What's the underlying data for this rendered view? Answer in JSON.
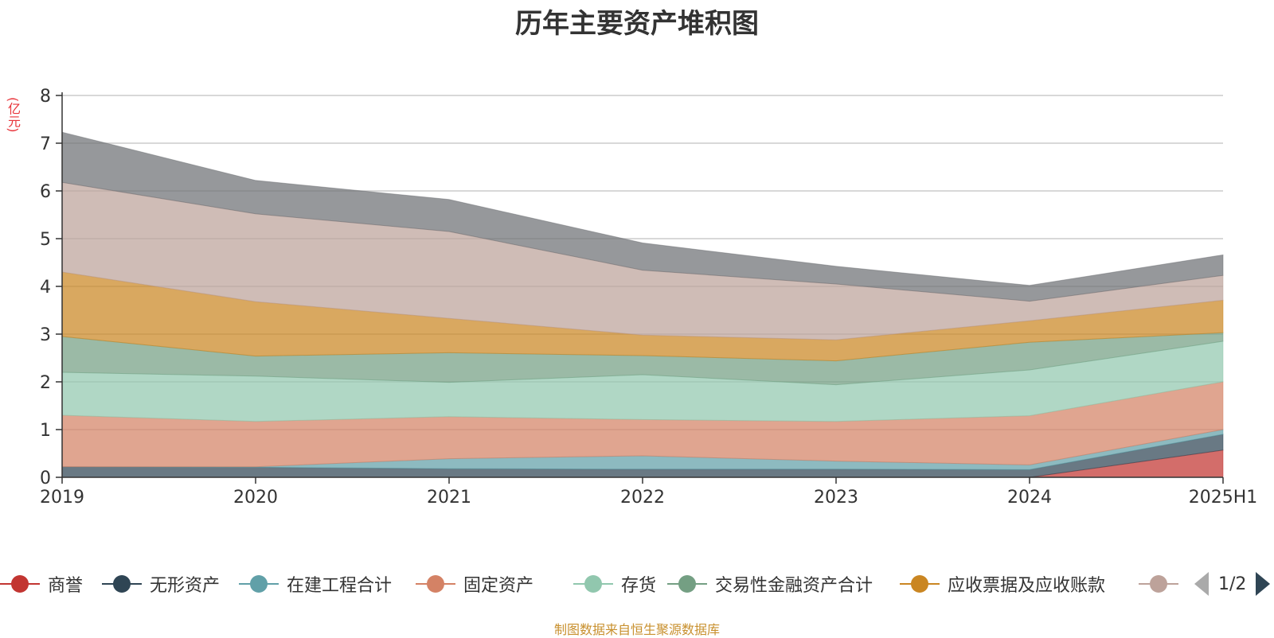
{
  "chart_data": {
    "type": "area",
    "stacked": true,
    "title": "历年主要资产堆积图",
    "unit": "(亿元)",
    "categories": [
      "2019",
      "2020",
      "2021",
      "2022",
      "2023",
      "2024",
      "2025H1"
    ],
    "ylim": [
      0,
      8
    ],
    "yticks": [
      0,
      1,
      2,
      3,
      4,
      5,
      6,
      7,
      8
    ],
    "grid": true,
    "legend_position": "bottom",
    "series": [
      {
        "name": "商誉",
        "color": "#c23531",
        "values": [
          0,
          0,
          0,
          0,
          0,
          0,
          0.57
        ]
      },
      {
        "name": "无形资产",
        "color": "#2f4554",
        "values": [
          0.22,
          0.21,
          0.18,
          0.17,
          0.17,
          0.16,
          0.33
        ]
      },
      {
        "name": "在建工程合计",
        "color": "#61a0a8",
        "values": [
          0,
          0.01,
          0.21,
          0.28,
          0.17,
          0.1,
          0.1
        ]
      },
      {
        "name": "固定资产",
        "color": "#d48265",
        "values": [
          1.08,
          0.95,
          0.88,
          0.76,
          0.83,
          1.03,
          1.0
        ]
      },
      {
        "name": "存货",
        "color": "#91c7ae",
        "values": [
          0.9,
          0.95,
          0.72,
          0.94,
          0.77,
          0.96,
          0.85
        ]
      },
      {
        "name": "交易性金融资产合计",
        "color": "#749f83",
        "values": [
          0.75,
          0.42,
          0.62,
          0.4,
          0.5,
          0.58,
          0.18
        ]
      },
      {
        "name": "应收票据及应收账款",
        "color": "#ca8622",
        "values": [
          1.35,
          1.14,
          0.72,
          0.43,
          0.44,
          0.45,
          0.68
        ]
      },
      {
        "name": "",
        "color": "#bda29a",
        "values": [
          1.88,
          1.84,
          1.82,
          1.36,
          1.17,
          0.41,
          0.52
        ]
      },
      {
        "name": "",
        "color": "#6e7074",
        "values": [
          1.05,
          0.7,
          0.67,
          0.57,
          0.37,
          0.33,
          0.43
        ]
      }
    ]
  },
  "legend_page": "1/2",
  "footer": "制图数据来自恒生聚源数据库"
}
